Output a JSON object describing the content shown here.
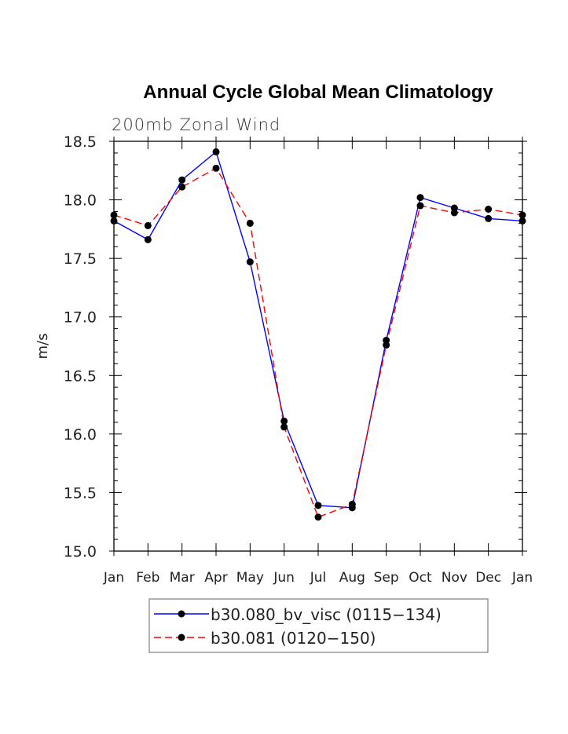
{
  "chart_data": {
    "type": "line",
    "title": "Annual Cycle Global Mean Climatology",
    "subtitle": "200mb Zonal Wind",
    "xlabel": "",
    "ylabel": "m/s",
    "ylim": [
      15.0,
      18.5
    ],
    "yticks": [
      "15.0",
      "15.5",
      "16.0",
      "16.5",
      "17.0",
      "17.5",
      "18.0",
      "18.5"
    ],
    "categories": [
      "Jan",
      "Feb",
      "Mar",
      "Apr",
      "May",
      "Jun",
      "Jul",
      "Aug",
      "Sep",
      "Oct",
      "Nov",
      "Dec",
      "Jan"
    ],
    "legend_position": "bottom-center",
    "series": [
      {
        "name": "b30.080_bv_visc (0115−134)",
        "color": "#0000ff",
        "style": "solid",
        "values": [
          17.82,
          17.66,
          18.17,
          18.41,
          17.47,
          16.11,
          15.39,
          15.37,
          16.8,
          18.02,
          17.93,
          17.84,
          17.82
        ]
      },
      {
        "name": "b30.081 (0120−150)",
        "color": "#ff0000",
        "style": "dashed",
        "values": [
          17.87,
          17.78,
          18.11,
          18.27,
          17.8,
          16.06,
          15.29,
          15.4,
          16.76,
          17.95,
          17.89,
          17.92,
          17.87
        ]
      }
    ]
  }
}
